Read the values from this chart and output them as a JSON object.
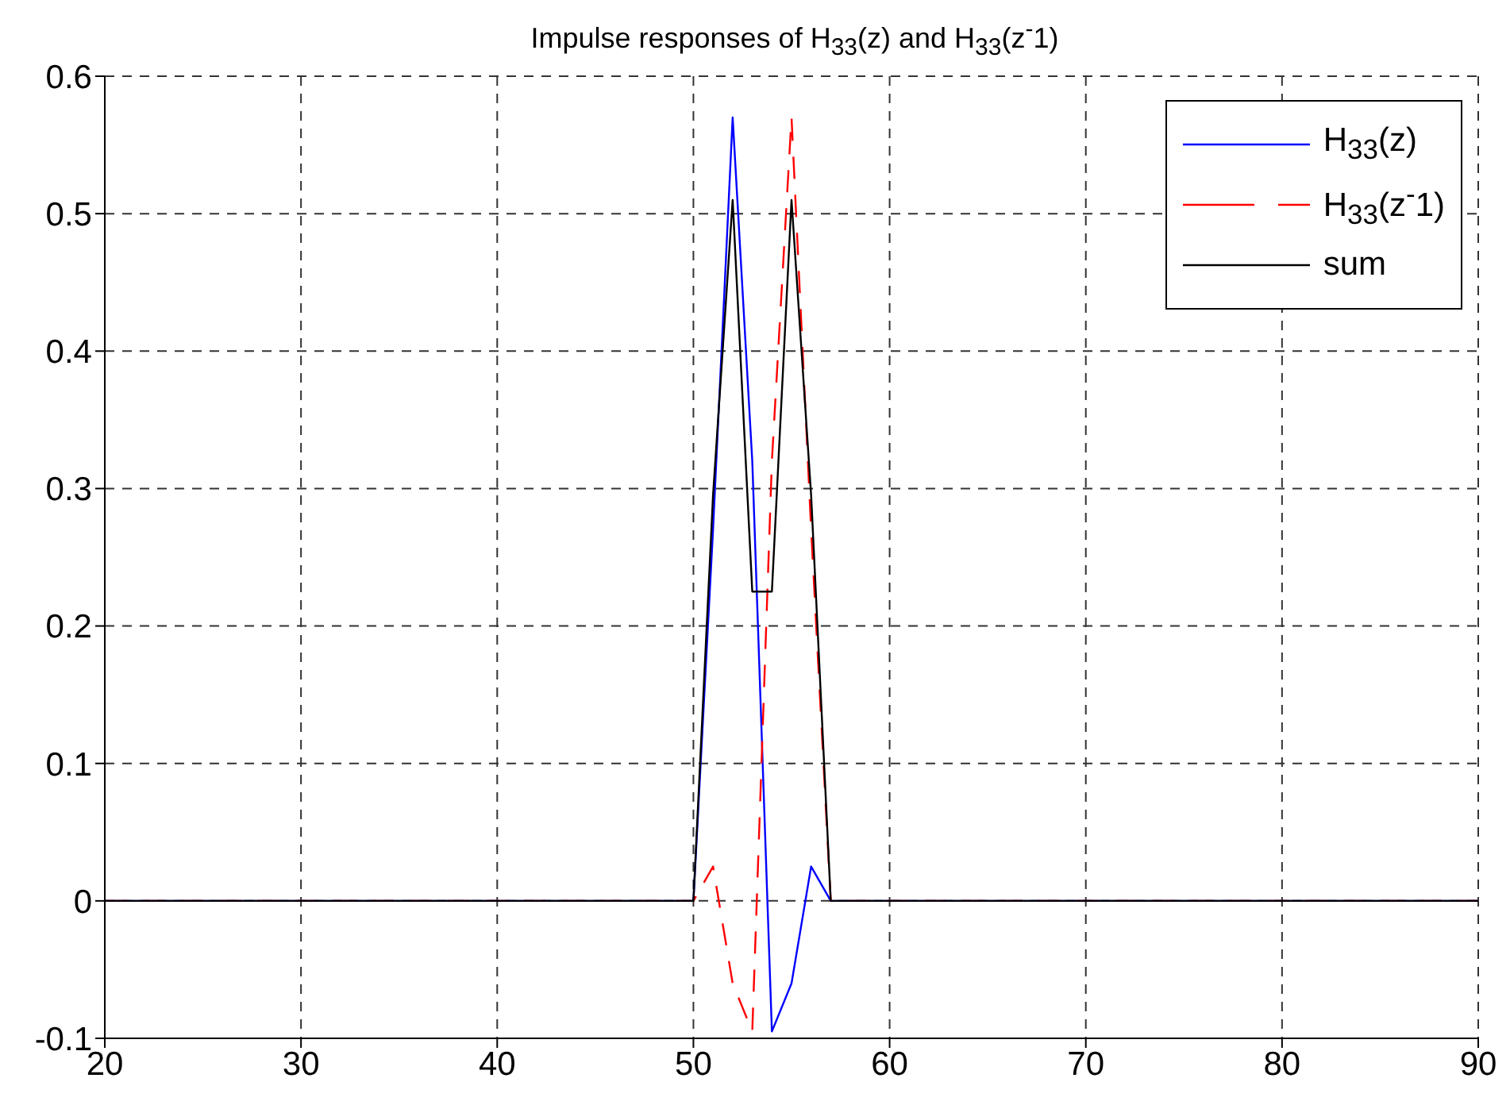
{
  "chart_data": {
    "type": "line",
    "title": "Impulse responses of H$_{33}$(z) and H$_{33}$(z$^{-}$1)",
    "x": [
      20,
      50,
      51,
      52,
      53,
      54,
      55,
      56,
      57,
      90
    ],
    "series": [
      {
        "name": "H$_{33}$(z)",
        "color": "#0000ff",
        "values": [
          0,
          0,
          0.27,
          0.57,
          0.32,
          -0.095,
          -0.06,
          0.025,
          0,
          0
        ]
      },
      {
        "name": "H$_{33}$(z$^{-}$1)",
        "color": "#ff0000",
        "line_style": "dashed",
        "values": [
          0,
          0,
          0.025,
          -0.06,
          -0.095,
          0.32,
          0.57,
          0.27,
          0,
          0
        ]
      },
      {
        "name": "sum",
        "color": "#000000",
        "values": [
          0,
          0,
          0.295,
          0.51,
          0.225,
          0.225,
          0.51,
          0.295,
          0,
          0
        ]
      }
    ],
    "xlim": [
      20,
      90
    ],
    "xticks": [
      20,
      30,
      40,
      50,
      60,
      70,
      80,
      90
    ],
    "ylim": [
      -0.1,
      0.6
    ],
    "yticks": [
      -0.1,
      0,
      0.1,
      0.2,
      0.3,
      0.4,
      0.5,
      0.6
    ],
    "grid": true,
    "legend": "top right",
    "marker": "none"
  }
}
